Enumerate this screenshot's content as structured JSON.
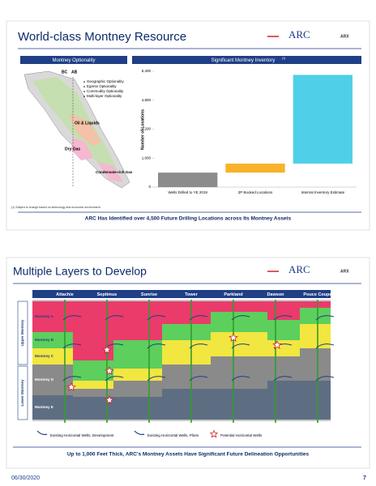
{
  "slide1": {
    "title": "World-class Montney Resource",
    "logo": "ARC",
    "ticker": "ARX",
    "left_panel": {
      "title": "Montney Optionality",
      "bullets": [
        "Geographic Optionality",
        "Egress Optionality",
        "Commodity Optionality",
        "Multi-layer Optionality"
      ],
      "labels": [
        "BC",
        "AB",
        "Oil & Liquids",
        "Dry Gas",
        "Condensate-rich Gas"
      ]
    },
    "footnote": "(1)   Subject to change based on technology and economic environment.",
    "banner": "ARC Has Identified over 4,500 Future Drilling Locations across Its Montney Assets",
    "chart_data": {
      "type": "waterfall",
      "title": "Significant Montney Inventory",
      "title_note": "(1)",
      "y_label": "Number of Locations",
      "categories": [
        "Wells Drilled to YE 2019",
        "2P Booked Locations",
        "Internal Inventory Estimate"
      ],
      "values": [
        800,
        500,
        4900
      ],
      "colors": [
        "#8c8c8c",
        "#f7b32b",
        "#4fd0e8"
      ],
      "ylim": [
        0,
        6400
      ],
      "yticks": [
        0,
        {
          "value": 1600,
          "label": "1,600"
        },
        {
          "value": 3200,
          "label": "3,200"
        },
        {
          "value": 4800,
          "label": "4,800"
        },
        {
          "value": 6400,
          "label": "6,400"
        }
      ]
    }
  },
  "slide2": {
    "title": "Multiple Layers to Develop",
    "logo": "ARC",
    "ticker": "ARX",
    "locations": [
      "Attachie",
      "Septimus",
      "Sunrise",
      "Tower",
      "Parkland",
      "Dawson",
      "Pouce Coupe"
    ],
    "zones": [
      "Upper Montney",
      "Lower Montney"
    ],
    "layers": [
      "Montney A",
      "Montney B",
      "Montney C",
      "Montney D",
      "Montney E"
    ],
    "legend": [
      "Existing Horizontal Wells, Development",
      "Existing Horizontal Wells, Pilots",
      "Potential Horizontal Wells"
    ],
    "banner": "Up to 1,000 Feet Thick, ARC's Montney Assets Have Significant Future Delineation Opportunities"
  },
  "footer": {
    "date": "06/30/2020",
    "page": "7"
  }
}
